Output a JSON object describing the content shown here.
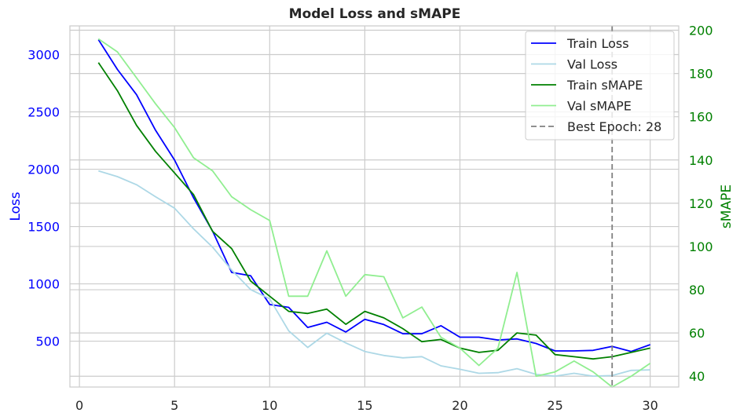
{
  "chart_data": {
    "type": "line",
    "title": "Model Loss and sMAPE",
    "xlabel": "",
    "ylabel_left": "Loss",
    "ylabel_right": "sMAPE",
    "xlim": [
      -0.5,
      31.5
    ],
    "ylim_left": [
      100,
      3250
    ],
    "ylim_right": [
      35,
      202
    ],
    "x_ticks": [
      0,
      5,
      10,
      15,
      20,
      25,
      30
    ],
    "y_ticks_left": [
      500,
      1000,
      1500,
      2000,
      2500,
      3000
    ],
    "y_ticks_right": [
      40,
      60,
      80,
      100,
      120,
      140,
      160,
      180,
      200
    ],
    "grid": true,
    "legend_position": "top-right",
    "x": [
      1,
      2,
      3,
      4,
      5,
      6,
      7,
      8,
      9,
      10,
      11,
      12,
      13,
      14,
      15,
      16,
      17,
      18,
      19,
      20,
      21,
      22,
      23,
      24,
      25,
      26,
      27,
      28,
      29,
      30
    ],
    "series": [
      {
        "name": "Train Loss",
        "axis": "left",
        "color": "#0000ff",
        "values": [
          3130,
          2870,
          2650,
          2340,
          2080,
          1750,
          1460,
          1100,
          1070,
          820,
          795,
          620,
          665,
          580,
          690,
          645,
          565,
          565,
          635,
          535,
          535,
          510,
          520,
          480,
          415,
          415,
          420,
          455,
          410,
          470
        ]
      },
      {
        "name": "Val Loss",
        "axis": "left",
        "color": "#add8e6",
        "values": [
          1985,
          1935,
          1865,
          1760,
          1660,
          1480,
          1320,
          1120,
          950,
          870,
          590,
          445,
          570,
          485,
          410,
          375,
          355,
          365,
          285,
          255,
          220,
          225,
          260,
          210,
          195,
          220,
          195,
          200,
          245,
          250
        ]
      },
      {
        "name": "Train sMAPE",
        "axis": "right",
        "color": "#008000",
        "values": [
          185,
          172,
          156,
          144,
          134,
          124,
          107,
          99,
          84,
          77,
          70,
          69,
          71,
          64,
          70,
          67,
          62,
          56,
          57,
          53,
          51,
          52,
          60,
          59,
          50,
          49,
          48,
          49,
          51,
          53
        ]
      },
      {
        "name": "Val sMAPE",
        "axis": "right",
        "color": "#90ee90",
        "values": [
          196,
          190,
          178,
          166,
          155,
          141,
          135,
          123,
          117,
          112,
          77,
          77,
          98,
          77,
          87,
          86,
          67,
          72,
          58,
          53,
          45,
          53,
          88,
          40,
          42,
          47,
          42,
          35,
          40,
          46
        ]
      }
    ],
    "reference_lines": [
      {
        "name": "Best Epoch: 28",
        "x": 28,
        "color": "#808080",
        "style": "dashed"
      }
    ],
    "legend_entries": [
      "Train Loss",
      "Val Loss",
      "Train sMAPE",
      "Val sMAPE",
      "Best Epoch: 28"
    ],
    "overlapping_legend_text": [
      "Train Loss",
      "Val Loss"
    ],
    "colors": {
      "left_axis": "#0000ff",
      "right_axis": "#008000",
      "grid": "#cccccc",
      "frame": "#cccccc",
      "text": "#262626",
      "ghost_text": "#d6d6d6"
    }
  }
}
